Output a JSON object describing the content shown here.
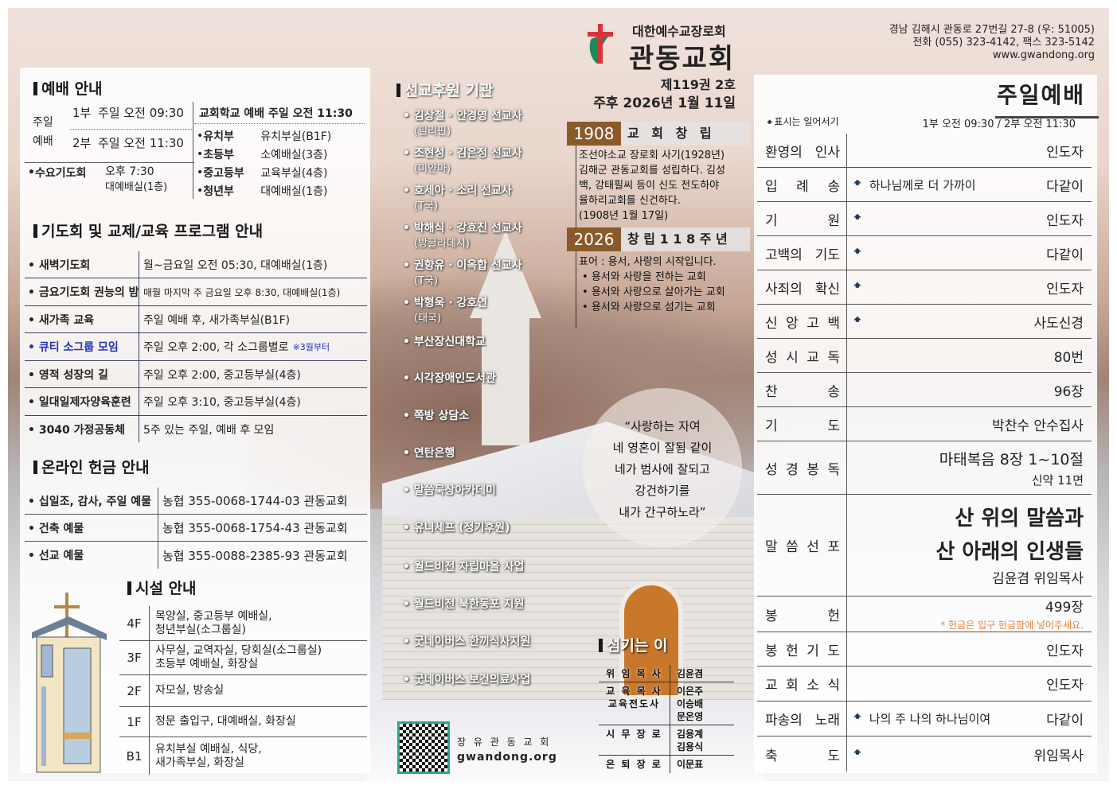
{
  "header": {
    "denomination": "대한예수교장로회",
    "church_name": "관동교회",
    "volume": "제119권 2호",
    "date": "주후 2026년 1월 11일",
    "address": "경남 김해시 관동로 27번길 27-8 (우: 51005)",
    "phone": "전화 (055) 323-4142, 팩스 323-5142",
    "website": "www.gwandong.org",
    "logo_colors": {
      "cross": "#d9333a",
      "leaf": "#1e8a5a"
    }
  },
  "worship_info": {
    "title": "예배 안내",
    "sunday_label_1": "주일",
    "sunday_label_2": "예배",
    "services": [
      {
        "part": "1부",
        "time": "주일 오전 09:30"
      },
      {
        "part": "2부",
        "time": "주일 오전 11:30"
      }
    ],
    "wednesday": {
      "label": "수요기도회",
      "time": "오후 7:30",
      "place": "대예배실(1층)"
    },
    "school_title": "교회학교 예배 주일 오전 11:30",
    "school": [
      {
        "dept": "유치부",
        "place": "유치부실(B1F)"
      },
      {
        "dept": "초등부",
        "place": "소예배실(3층)"
      },
      {
        "dept": "중고등부",
        "place": "교육부실(4층)"
      },
      {
        "dept": "청년부",
        "place": "대예배실(1층)"
      }
    ]
  },
  "programs": {
    "title": "기도회 및 교제/교육 프로그램 안내",
    "rows": [
      {
        "name": "새벽기도회",
        "detail": "월~금요일 오전 05:30, 대예배실(1층)"
      },
      {
        "name": "금요기도회 권능의 밤",
        "detail": "매월 마지막 주 금요일 오후 8:30, 대예배실(1층)"
      },
      {
        "name": "새가족 교육",
        "detail": "주일 예배 후, 새가족부실(B1F)"
      },
      {
        "name": "큐티 소그룹 모임",
        "detail": "주일 오후 2:00, 각 소그룹별로",
        "note": "※3월부터"
      },
      {
        "name": "영적 성장의 길",
        "detail": "주일 오후 2:00, 중고등부실(4층)"
      },
      {
        "name": "일대일제자양육훈련",
        "detail": "주일 오후 3:10, 중고등부실(4층)"
      },
      {
        "name": "3040 가정공동체",
        "detail": "5주 있는 주일, 예배 후 모임"
      }
    ],
    "highlight_color": "#2233bb"
  },
  "offering": {
    "title": "온라인 헌금 안내",
    "rows": [
      {
        "name": "십일조, 감사, 주일 예물",
        "account": "농협 355-0068-1744-03 관동교회"
      },
      {
        "name": "건축 예물",
        "account": "농협 355-0068-1754-43 관동교회"
      },
      {
        "name": "선교 예물",
        "account": "농협 355-0088-2385-93 관동교회"
      }
    ]
  },
  "facilities": {
    "title": "시설 안내",
    "rows": [
      {
        "floor": "4F",
        "lines": [
          "목양실, 중고등부 예배실,",
          "청년부실(소그룹실)"
        ]
      },
      {
        "floor": "3F",
        "lines": [
          "사무실, 교역자실, 당회실(소그룹실)",
          "초등부 예배실, 화장실"
        ]
      },
      {
        "floor": "2F",
        "lines": [
          "자모실, 방송실"
        ]
      },
      {
        "floor": "1F",
        "lines": [
          "정문 출입구, 대예배실, 화장실"
        ]
      },
      {
        "floor": "B1",
        "lines": [
          "유치부실 예배실, 식당,",
          "새가족부실, 화장실"
        ]
      }
    ]
  },
  "missions": {
    "title": "선교후원 기관",
    "items": [
      {
        "name": "김상철 · 안경영 선교사",
        "sub": "(필리핀)"
      },
      {
        "name": "조현성 · 김은정 선교사",
        "sub": "(미얀마)"
      },
      {
        "name": "호세아 · 소리 선교사",
        "sub": "(T국)"
      },
      {
        "name": "박해식 · 강효진 선교사",
        "sub": "(방글라데시)"
      },
      {
        "name": "권향유 · 이옥합 선교사",
        "sub": "(T국)"
      },
      {
        "name": "박형욱 · 강호연",
        "sub": "(태국)"
      },
      {
        "name": "부산장신대학교"
      },
      {
        "name": "시각장애인도서관"
      },
      {
        "name": "쪽방 상담소"
      },
      {
        "name": "연탄은행"
      },
      {
        "name": "말씀묵상아카데미"
      },
      {
        "name": "유니세프 (정기후원)"
      },
      {
        "name": "월드비전 자립마을 사업"
      },
      {
        "name": "월드비전 북한동포 지원"
      },
      {
        "name": "굿네이버스 한끼식사지원"
      },
      {
        "name": "굿네이버스 보건의료사업"
      }
    ]
  },
  "qr": {
    "caption_1": "장 유  관 동 교 회",
    "caption_2": "gwandong.org",
    "frame_color": "#2aa58a"
  },
  "history": {
    "founding": {
      "year": "1908",
      "label": "교 회 창 립",
      "lines": [
        "조선야소교 장로회 사기(1928년)",
        "김해군 관동교회를 성립하다. 김성",
        "백, 강태필씨 등이 신도 전도하야",
        "율하리교회를 신건하다.",
        "(1908년 1월 17일)"
      ]
    },
    "anniversary": {
      "year": "2026",
      "label": "창 립 1 1 8 주 년",
      "motto": "표어 : 용서, 사랑의 시작입니다.",
      "bullets": [
        "용서와 사랑을 전하는 교회",
        "용서와 사랑으로 살아가는 교회",
        "용서와 사랑으로 섬기는 교회"
      ]
    },
    "band_color": "#8b5a2b"
  },
  "verse": [
    "“사랑하는 자여",
    "네 영혼이 잘됨 같이",
    "네가 범사에 잘되고",
    "강건하기를",
    "내가 간구하노라”"
  ],
  "servants": {
    "title": "섬기는 이",
    "rows": [
      {
        "role": "위 임 목 사",
        "names": [
          "김윤겸"
        ]
      },
      {
        "role": "교 육 목 사\n교육전도사",
        "names": [
          "이은주",
          "이승배",
          "문은영"
        ]
      },
      {
        "role": "시 무 장 로",
        "names": [
          "김용계",
          "김용식"
        ]
      },
      {
        "role": "은 퇴 장 로",
        "names": [
          "이문표"
        ]
      }
    ]
  },
  "sunday_worship": {
    "title": "주일예배",
    "stand_note": "표시는 일어서기",
    "times": "1부 오전 09:30 / 2부 오전 11:30",
    "stand_icon_color": "#1f3a5a",
    "note_color": "#e8823a",
    "rows": [
      {
        "label": "환영의 인사",
        "value": "인도자",
        "stand": false
      },
      {
        "label": "입 례 송",
        "song": "하나님께로 더 가까이",
        "value": "다같이",
        "stand": true
      },
      {
        "label": "기 원",
        "value": "인도자",
        "stand": true
      },
      {
        "label": "고백의 기도",
        "value": "다같이",
        "stand": true
      },
      {
        "label": "사죄의 확신",
        "value": "인도자",
        "stand": true
      },
      {
        "label": "신 앙 고 백",
        "value": "사도신경",
        "stand": true
      },
      {
        "label": "성 시 교 독",
        "value": "80번",
        "stand": false
      },
      {
        "label": "찬 송",
        "value": "96장",
        "stand": false
      },
      {
        "label": "기 도",
        "value": "박찬수 안수집사",
        "stand": false
      },
      {
        "label": "성 경 봉 독",
        "value": "마태복음 8장 1~10절",
        "sub": "신약 11면",
        "stand": false
      },
      {
        "label": "말 씀 선 포",
        "sermon": [
          "산 위의 말씀과",
          "산 아래의 인생들"
        ],
        "value": "김윤겸 위임목사",
        "stand": false
      },
      {
        "label": "봉 헌",
        "value": "499장",
        "note": "* 헌금은 입구 헌금함에 넣어주세요.",
        "stand": false
      },
      {
        "label": "봉 헌 기 도",
        "value": "인도자",
        "stand": false
      },
      {
        "label": "교 회 소 식",
        "value": "인도자",
        "stand": false
      },
      {
        "label": "파송의 노래",
        "song": "나의 주 나의 하나님이여",
        "value": "다같이",
        "stand": true
      },
      {
        "label": "축 도",
        "value": "위임목사",
        "stand": true
      }
    ]
  }
}
